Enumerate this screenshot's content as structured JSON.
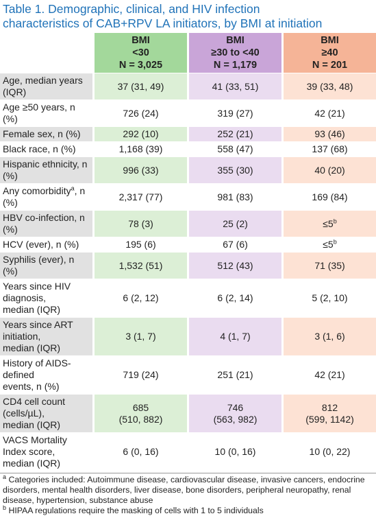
{
  "title": [
    "Table 1. Demographic, clinical, and HIV infection",
    "characteristics of CAB+RPV LA initiators, by BMI at initiation"
  ],
  "table": {
    "headers": [
      [
        "BMI",
        "<30",
        "N = 3,025"
      ],
      [
        "BMI",
        "≥30 to <40",
        "N = 1,179"
      ],
      [
        "BMI",
        "≥40",
        "N = 201"
      ]
    ],
    "rows": [
      {
        "label": [
          "Age, median years (IQR)"
        ],
        "values": [
          "37 (31, 49)",
          "41 (33, 51)",
          "39 (33, 48)"
        ]
      },
      {
        "label": [
          "Age ≥50 years, n (%)"
        ],
        "values": [
          "726 (24)",
          "319 (27)",
          "42 (21)"
        ]
      },
      {
        "label": [
          "Female sex, n (%)"
        ],
        "values": [
          "292 (10)",
          "252 (21)",
          "93 (46)"
        ]
      },
      {
        "label": [
          "Black race, n (%)"
        ],
        "values": [
          "1,168 (39)",
          "558 (47)",
          "137 (68)"
        ]
      },
      {
        "label": [
          "Hispanic ethnicity, n (%)"
        ],
        "values": [
          "996 (33)",
          "355 (30)",
          "40 (20)"
        ]
      },
      {
        "label": [
          {
            "text": "Any comorbidity",
            "sup": "a",
            "after": ", n (%)"
          }
        ],
        "values": [
          "2,317 (77)",
          "981 (83)",
          "169 (84)"
        ]
      },
      {
        "label": [
          "HBV co-infection, n (%)"
        ],
        "values": [
          "78 (3)",
          "25 (2)",
          {
            "text": "≤5",
            "sup": "b"
          }
        ]
      },
      {
        "label": [
          "HCV (ever), n (%)"
        ],
        "values": [
          "195 (6)",
          "67 (6)",
          {
            "text": "≤5",
            "sup": "b"
          }
        ]
      },
      {
        "label": [
          "Syphilis (ever), n (%)"
        ],
        "values": [
          "1,532 (51)",
          "512 (43)",
          "71 (35)"
        ]
      },
      {
        "label": [
          "Years since HIV diagnosis,",
          "median (IQR)"
        ],
        "values": [
          "6 (2, 12)",
          "6 (2, 14)",
          "5 (2, 10)"
        ]
      },
      {
        "label": [
          "Years since ART initiation,",
          "median (IQR)"
        ],
        "values": [
          "3 (1, 7)",
          "4 (1, 7)",
          "3 (1, 6)"
        ]
      },
      {
        "label": [
          "History of AIDS-defined",
          "events, n (%)"
        ],
        "values": [
          "719 (24)",
          "251 (21)",
          "42 (21)"
        ]
      },
      {
        "label": [
          "CD4 cell count (cells/µL),",
          "median (IQR)"
        ],
        "values": [
          [
            "685",
            "(510, 882)"
          ],
          [
            "746",
            "(563, 982)"
          ],
          [
            "812",
            "(599, 1142)"
          ]
        ]
      },
      {
        "label": [
          "VACS Mortality Index score,",
          "median (IQR)"
        ],
        "values": [
          "6 (0, 16)",
          "10 (0, 16)",
          "10 (0, 22)"
        ]
      }
    ]
  },
  "footnotes": [
    {
      "marker": "a",
      "text": "Categories included: Autoimmune disease, cardiovascular disease, invasive cancers, endocrine disorders, mental health disorders, liver disease, bone disorders, peripheral neuropathy, renal disease, hypertension, substance abuse"
    },
    {
      "marker": "b",
      "text": "HIPAA regulations require the masking of cells with 1 to 5 individuals"
    }
  ]
}
